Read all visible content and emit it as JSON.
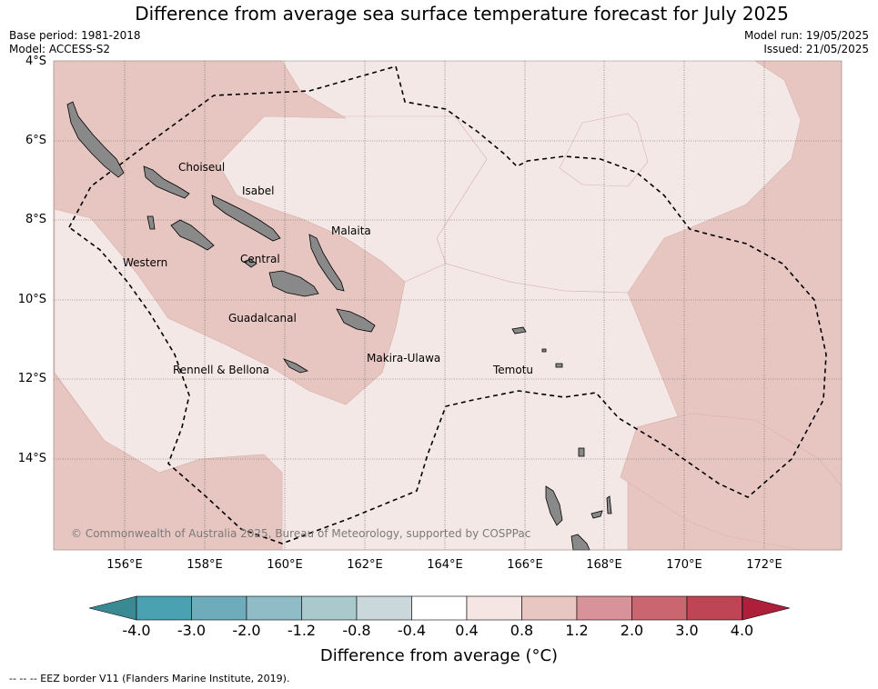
{
  "title": "Difference from average sea surface temperature forecast for July 2025",
  "meta_left": [
    "Base period: 1981-2018",
    "Model: ACCESS-S2"
  ],
  "meta_right": [
    "Model run: 19/05/2025",
    "Issued: 21/05/2025"
  ],
  "lat_labels": [
    "4°S",
    "6°S",
    "8°S",
    "10°S",
    "12°S",
    "14°S"
  ],
  "lon_labels": [
    "156°E",
    "158°E",
    "160°E",
    "162°E",
    "164°E",
    "166°E",
    "168°E",
    "170°E",
    "172°E"
  ],
  "places": [
    {
      "name": "Choiseul"
    },
    {
      "name": "Isabel"
    },
    {
      "name": "Malaita"
    },
    {
      "name": "Western"
    },
    {
      "name": "Central"
    },
    {
      "name": "Guadalcanal"
    },
    {
      "name": "Makira-Ulawa"
    },
    {
      "name": "Rennell & Bellona"
    },
    {
      "name": "Temotu"
    }
  ],
  "copyright": "© Commonwealth of Australia 2025, Bureau of Meteorology, supported by COSPPac",
  "colorbar": {
    "colors": [
      "#4aa1b2",
      "#6eacbb",
      "#8fbcc6",
      "#aac9cd",
      "#cad8dc",
      "#ffffff",
      "#f5e6e4",
      "#e8c6c1",
      "#d8939a",
      "#c9666f",
      "#be4553"
    ],
    "under_color": "#3a8a94",
    "over_color": "#ae1f3c",
    "labels": [
      "-4.0",
      "-3.0",
      "-2.0",
      "-1.2",
      "-0.8",
      "-0.4",
      "0.4",
      "0.8",
      "1.2",
      "2.0",
      "3.0",
      "4.0"
    ],
    "title": "Difference from average (°C)"
  },
  "map_colors": {
    "light": "#f4e8e6",
    "medium": "#e7c6c1",
    "land": "#898989"
  },
  "footer": "-- -- -- EEZ border V11 (Flanders Marine Institute, 2019)."
}
